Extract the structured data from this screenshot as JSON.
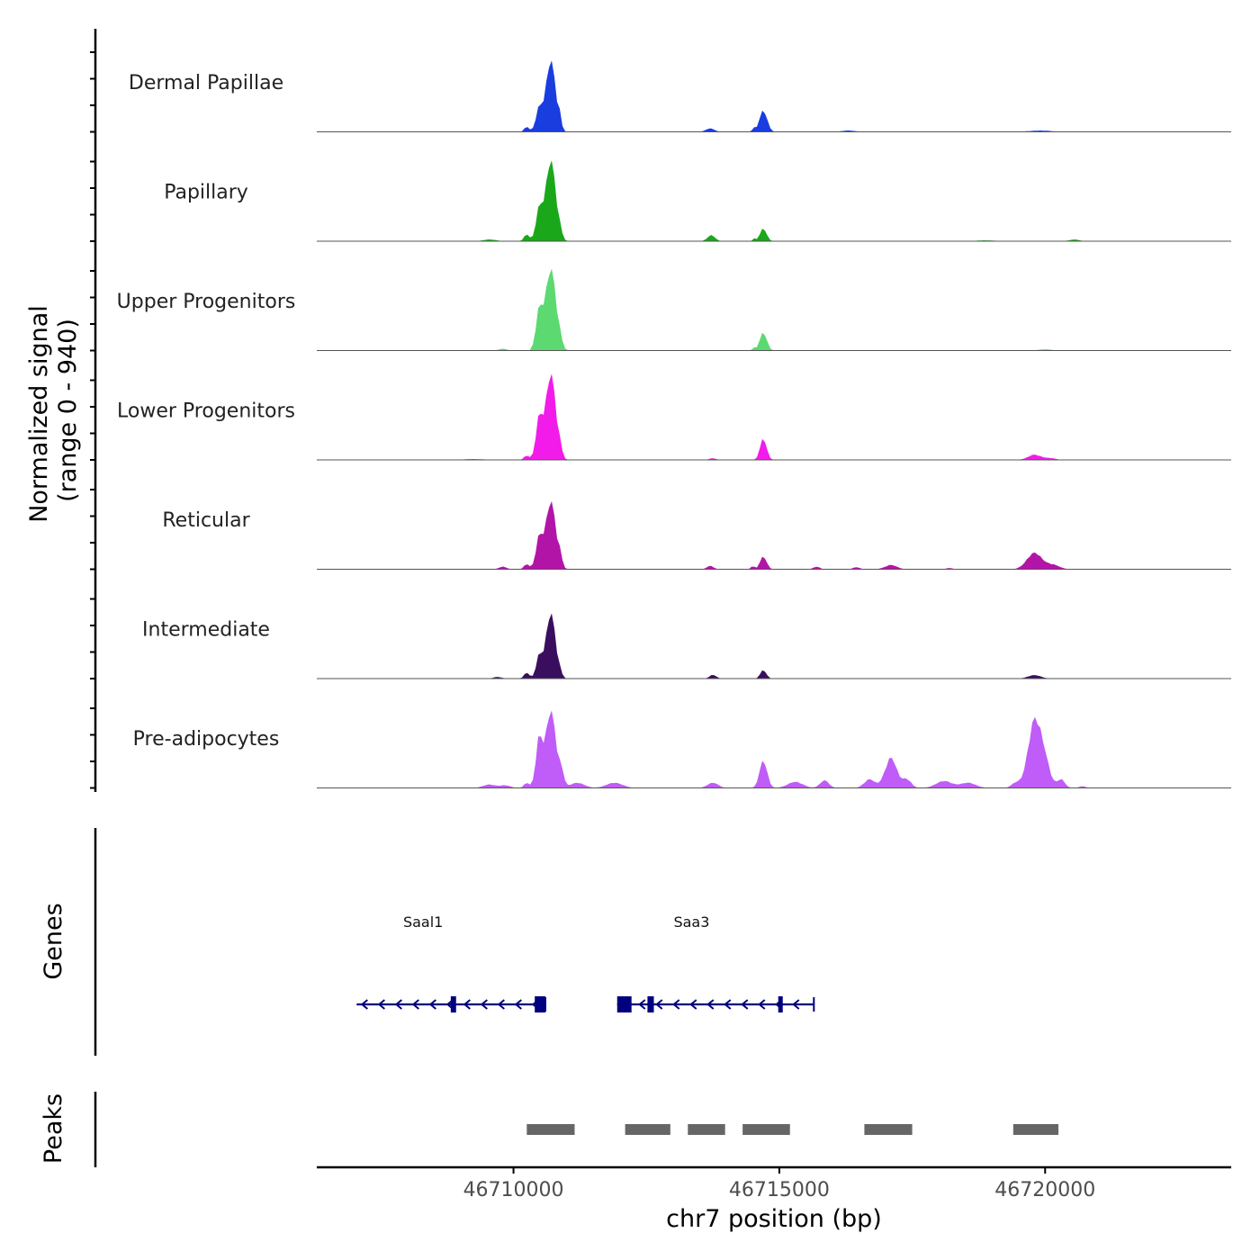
{
  "chart_data": {
    "type": "area",
    "title": "",
    "ylabel_line1": "Normalized signal",
    "ylabel_line2": "(range 0 - 940)",
    "xlabel": "chr7 position (bp)",
    "xlim": [
      46706300,
      46723500
    ],
    "ylim": [
      0,
      940
    ],
    "xticks": [
      46710000,
      46715000,
      46720000
    ],
    "xtick_labels": [
      "46710000",
      "46715000",
      "46720000"
    ],
    "grid": false,
    "tracks": [
      {
        "name": "Dermal Papillae",
        "color": "#1a3de0",
        "peaks": [
          [
            46710250,
            60,
            45
          ],
          [
            46710480,
            260,
            60
          ],
          [
            46710700,
            830,
            90
          ],
          [
            46710870,
            120,
            30
          ],
          [
            46714700,
            250,
            70
          ],
          [
            46714520,
            40,
            30
          ],
          [
            46713700,
            40,
            80
          ],
          [
            46716300,
            15,
            120
          ],
          [
            46719900,
            15,
            200
          ]
        ]
      },
      {
        "name": "Papillary",
        "color": "#1aa81a",
        "peaks": [
          [
            46709550,
            20,
            120
          ],
          [
            46710250,
            80,
            50
          ],
          [
            46710480,
            350,
            60
          ],
          [
            46710700,
            940,
            95
          ],
          [
            46710880,
            60,
            35
          ],
          [
            46713720,
            70,
            70
          ],
          [
            46714700,
            150,
            60
          ],
          [
            46714530,
            30,
            30
          ],
          [
            46718900,
            10,
            180
          ],
          [
            46720550,
            20,
            90
          ]
        ]
      },
      {
        "name": "Upper Progenitors",
        "color": "#5cd970",
        "peaks": [
          [
            46709800,
            20,
            80
          ],
          [
            46710480,
            430,
            60
          ],
          [
            46710700,
            950,
            100
          ],
          [
            46710880,
            60,
            35
          ],
          [
            46714700,
            210,
            65
          ],
          [
            46714520,
            30,
            30
          ],
          [
            46720000,
            15,
            120
          ]
        ]
      },
      {
        "name": "Lower Progenitors",
        "color": "#f21bea",
        "peaks": [
          [
            46709250,
            10,
            200
          ],
          [
            46710250,
            50,
            50
          ],
          [
            46710480,
            460,
            60
          ],
          [
            46710700,
            1000,
            95
          ],
          [
            46710880,
            80,
            35
          ],
          [
            46714700,
            250,
            60
          ],
          [
            46713750,
            20,
            60
          ],
          [
            46719800,
            60,
            120
          ],
          [
            46720100,
            20,
            100
          ]
        ]
      },
      {
        "name": "Reticular",
        "color": "#b314a8",
        "peaks": [
          [
            46709800,
            30,
            70
          ],
          [
            46710250,
            60,
            50
          ],
          [
            46710480,
            350,
            60
          ],
          [
            46710700,
            790,
            95
          ],
          [
            46710880,
            110,
            35
          ],
          [
            46713700,
            40,
            60
          ],
          [
            46714700,
            150,
            60
          ],
          [
            46714500,
            40,
            30
          ],
          [
            46715700,
            30,
            60
          ],
          [
            46716450,
            25,
            60
          ],
          [
            46717100,
            50,
            110
          ],
          [
            46719800,
            190,
            140
          ],
          [
            46720150,
            50,
            120
          ],
          [
            46718200,
            15,
            60
          ]
        ]
      },
      {
        "name": "Intermediate",
        "color": "#3a0e5e",
        "peaks": [
          [
            46709700,
            20,
            70
          ],
          [
            46710250,
            70,
            50
          ],
          [
            46710480,
            250,
            55
          ],
          [
            46710700,
            760,
            90
          ],
          [
            46710880,
            40,
            30
          ],
          [
            46713750,
            45,
            60
          ],
          [
            46714700,
            100,
            55
          ],
          [
            46719800,
            40,
            120
          ]
        ]
      },
      {
        "name": "Pre-adipocytes",
        "color": "#c05cf7",
        "peaks": [
          [
            46709550,
            40,
            120
          ],
          [
            46709850,
            30,
            90
          ],
          [
            46710250,
            60,
            50
          ],
          [
            46710480,
            550,
            60
          ],
          [
            46710700,
            900,
            95
          ],
          [
            46710900,
            170,
            50
          ],
          [
            46711200,
            60,
            130
          ],
          [
            46711900,
            60,
            150
          ],
          [
            46713750,
            60,
            100
          ],
          [
            46714700,
            320,
            70
          ],
          [
            46715300,
            70,
            140
          ],
          [
            46715850,
            90,
            80
          ],
          [
            46716700,
            100,
            100
          ],
          [
            46717100,
            350,
            110
          ],
          [
            46717400,
            100,
            80
          ],
          [
            46718100,
            80,
            150
          ],
          [
            46718550,
            60,
            140
          ],
          [
            46719800,
            770,
            120
          ],
          [
            46719450,
            60,
            80
          ],
          [
            46720000,
            250,
            100
          ],
          [
            46720300,
            100,
            70
          ],
          [
            46720700,
            20,
            60
          ]
        ]
      }
    ],
    "genes": [
      {
        "name": "Saal1",
        "start": 46707050,
        "end": 46710600,
        "strand": "-",
        "exons": [
          [
            46708820,
            46708920
          ],
          [
            46710400,
            46710600
          ]
        ],
        "label_pos": 46708300
      },
      {
        "name": "Saa3",
        "start": 46711950,
        "end": 46715650,
        "strand": "-",
        "exons": [
          [
            46711950,
            46712220
          ],
          [
            46712520,
            46712640
          ],
          [
            46714980,
            46715040
          ]
        ],
        "label_pos": 46713350
      }
    ],
    "peaks_track": {
      "label": "Peaks",
      "regions": [
        [
          46710250,
          46711150
        ],
        [
          46712100,
          46712950
        ],
        [
          46713280,
          46713980
        ],
        [
          46714310,
          46715200
        ],
        [
          46716600,
          46717500
        ],
        [
          46719400,
          46720250
        ]
      ]
    },
    "genes_track_label": "Genes"
  }
}
